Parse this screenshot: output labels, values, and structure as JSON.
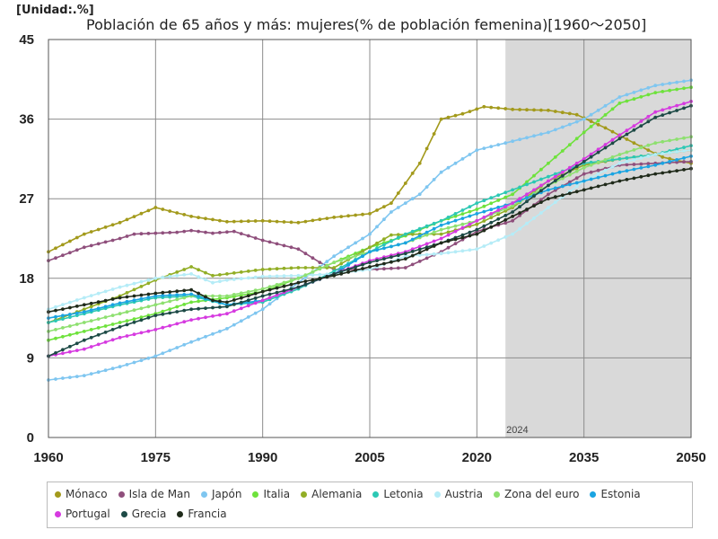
{
  "unit_label": "[Unidad:.%]",
  "chart_data": {
    "type": "line",
    "title": "Población de 65 años y más: mujeres(% de población femenina)[1960～2050]",
    "xlabel": "",
    "ylabel": "",
    "xlim": [
      1960,
      2050
    ],
    "ylim": [
      0,
      45
    ],
    "x_ticks": [
      "1960",
      "1975",
      "1990",
      "2005",
      "2020",
      "2035",
      "2050"
    ],
    "y_ticks": [
      "0",
      "9",
      "18",
      "27",
      "36",
      "45"
    ],
    "projection_start": 2024,
    "projection_label": "2024",
    "grid": true,
    "legend_position": "bottom",
    "series": [
      {
        "name": "Mónaco",
        "color": "#a39a1c",
        "points": [
          [
            1960,
            21
          ],
          [
            1965,
            23
          ],
          [
            1970,
            24.3
          ],
          [
            1975,
            26
          ],
          [
            1980,
            25
          ],
          [
            1985,
            24.4
          ],
          [
            1990,
            24.5
          ],
          [
            1995,
            24.3
          ],
          [
            2000,
            24.9
          ],
          [
            2005,
            25.3
          ],
          [
            2008,
            26.5
          ],
          [
            2012,
            31
          ],
          [
            2015,
            36
          ],
          [
            2018,
            36.6
          ],
          [
            2021,
            37.4
          ],
          [
            2025,
            37.1
          ],
          [
            2030,
            37
          ],
          [
            2034,
            36.5
          ],
          [
            2038,
            35
          ],
          [
            2042,
            33.3
          ],
          [
            2046,
            31.7
          ],
          [
            2050,
            31
          ]
        ]
      },
      {
        "name": "Isla de Man",
        "color": "#8f4f7c",
        "points": [
          [
            1960,
            20
          ],
          [
            1965,
            21.5
          ],
          [
            1970,
            22.5
          ],
          [
            1972,
            23
          ],
          [
            1978,
            23.2
          ],
          [
            1980,
            23.4
          ],
          [
            1983,
            23.1
          ],
          [
            1986,
            23.3
          ],
          [
            1990,
            22.3
          ],
          [
            1995,
            21.3
          ],
          [
            1998,
            19.8
          ],
          [
            2000,
            19
          ],
          [
            2005,
            19
          ],
          [
            2010,
            19.2
          ],
          [
            2015,
            21
          ],
          [
            2020,
            23.3
          ],
          [
            2025,
            24.5
          ],
          [
            2030,
            27.5
          ],
          [
            2035,
            29.8
          ],
          [
            2040,
            30.8
          ],
          [
            2045,
            31
          ],
          [
            2050,
            31.2
          ]
        ]
      },
      {
        "name": "Japón",
        "color": "#7fc6f0",
        "points": [
          [
            1960,
            6.5
          ],
          [
            1965,
            7
          ],
          [
            1970,
            8
          ],
          [
            1975,
            9.2
          ],
          [
            1980,
            10.8
          ],
          [
            1985,
            12.3
          ],
          [
            1990,
            14.5
          ],
          [
            1995,
            17.5
          ],
          [
            2000,
            20.5
          ],
          [
            2005,
            23
          ],
          [
            2008,
            25.5
          ],
          [
            2012,
            27.5
          ],
          [
            2015,
            30
          ],
          [
            2020,
            32.5
          ],
          [
            2025,
            33.5
          ],
          [
            2030,
            34.5
          ],
          [
            2035,
            36
          ],
          [
            2040,
            38.5
          ],
          [
            2045,
            39.8
          ],
          [
            2050,
            40.4
          ]
        ]
      },
      {
        "name": "Italia",
        "color": "#6ee23c",
        "points": [
          [
            1960,
            11
          ],
          [
            1965,
            12
          ],
          [
            1970,
            13
          ],
          [
            1975,
            14
          ],
          [
            1980,
            15.3
          ],
          [
            1985,
            15.8
          ],
          [
            1990,
            16.5
          ],
          [
            1995,
            18
          ],
          [
            2000,
            19.8
          ],
          [
            2005,
            21.5
          ],
          [
            2010,
            22.8
          ],
          [
            2015,
            24.5
          ],
          [
            2020,
            25.8
          ],
          [
            2025,
            27.5
          ],
          [
            2030,
            31
          ],
          [
            2035,
            34.5
          ],
          [
            2040,
            37.8
          ],
          [
            2045,
            39
          ],
          [
            2050,
            39.6
          ]
        ]
      },
      {
        "name": "Alemania",
        "color": "#92ae26",
        "points": [
          [
            1960,
            13
          ],
          [
            1965,
            14.5
          ],
          [
            1970,
            16
          ],
          [
            1975,
            17.8
          ],
          [
            1980,
            19.3
          ],
          [
            1983,
            18.3
          ],
          [
            1985,
            18.5
          ],
          [
            1990,
            19
          ],
          [
            1995,
            19.2
          ],
          [
            2000,
            19.2
          ],
          [
            2005,
            21.5
          ],
          [
            2008,
            22.9
          ],
          [
            2012,
            23
          ],
          [
            2015,
            23
          ],
          [
            2020,
            24.1
          ],
          [
            2025,
            26
          ],
          [
            2030,
            29
          ],
          [
            2035,
            30.8
          ],
          [
            2040,
            31.5
          ],
          [
            2045,
            32
          ],
          [
            2050,
            32.5
          ]
        ]
      },
      {
        "name": "Letonia",
        "color": "#2cc8b4",
        "points": [
          [
            1960,
            13
          ],
          [
            1965,
            14
          ],
          [
            1970,
            15
          ],
          [
            1975,
            15.8
          ],
          [
            1980,
            16
          ],
          [
            1985,
            15
          ],
          [
            1990,
            15.3
          ],
          [
            1995,
            16.8
          ],
          [
            2000,
            18.8
          ],
          [
            2005,
            21
          ],
          [
            2010,
            23
          ],
          [
            2015,
            24.5
          ],
          [
            2020,
            26.5
          ],
          [
            2025,
            28
          ],
          [
            2030,
            29.5
          ],
          [
            2035,
            31
          ],
          [
            2040,
            31.5
          ],
          [
            2045,
            32
          ],
          [
            2050,
            33
          ]
        ]
      },
      {
        "name": "Austria",
        "color": "#b5ecf7",
        "points": [
          [
            1960,
            14.5
          ],
          [
            1965,
            15.8
          ],
          [
            1970,
            17
          ],
          [
            1975,
            18
          ],
          [
            1980,
            18.5
          ],
          [
            1983,
            17.5
          ],
          [
            1985,
            17.8
          ],
          [
            1990,
            18.2
          ],
          [
            1995,
            18.3
          ],
          [
            2000,
            18.5
          ],
          [
            2005,
            19
          ],
          [
            2010,
            20.5
          ],
          [
            2015,
            20.8
          ],
          [
            2020,
            21.3
          ],
          [
            2025,
            23
          ],
          [
            2030,
            26
          ],
          [
            2035,
            29
          ],
          [
            2040,
            31
          ],
          [
            2045,
            32
          ],
          [
            2050,
            32.5
          ]
        ]
      },
      {
        "name": "Zona del euro",
        "color": "#8ee070",
        "points": [
          [
            1960,
            12
          ],
          [
            1965,
            13
          ],
          [
            1970,
            14
          ],
          [
            1975,
            15
          ],
          [
            1980,
            16
          ],
          [
            1985,
            16
          ],
          [
            1990,
            16.8
          ],
          [
            1995,
            18
          ],
          [
            2000,
            19.8
          ],
          [
            2005,
            21
          ],
          [
            2010,
            22
          ],
          [
            2015,
            23.5
          ],
          [
            2020,
            24.5
          ],
          [
            2025,
            26.2
          ],
          [
            2030,
            28.5
          ],
          [
            2035,
            30.5
          ],
          [
            2040,
            32
          ],
          [
            2045,
            33.3
          ],
          [
            2050,
            34
          ]
        ]
      },
      {
        "name": "Estonia",
        "color": "#1aa4e2",
        "points": [
          [
            1960,
            13.5
          ],
          [
            1965,
            14.2
          ],
          [
            1970,
            15.2
          ],
          [
            1975,
            16
          ],
          [
            1980,
            16.2
          ],
          [
            1985,
            15
          ],
          [
            1990,
            15.5
          ],
          [
            1995,
            17
          ],
          [
            2000,
            18.5
          ],
          [
            2005,
            21
          ],
          [
            2010,
            22
          ],
          [
            2015,
            24
          ],
          [
            2020,
            25.3
          ],
          [
            2025,
            26.5
          ],
          [
            2030,
            28
          ],
          [
            2035,
            29
          ],
          [
            2040,
            30
          ],
          [
            2045,
            30.8
          ],
          [
            2050,
            31.8
          ]
        ]
      },
      {
        "name": "Portugal",
        "color": "#d63ae0",
        "points": [
          [
            1960,
            9.2
          ],
          [
            1965,
            10
          ],
          [
            1970,
            11.3
          ],
          [
            1975,
            12.2
          ],
          [
            1980,
            13.3
          ],
          [
            1985,
            14
          ],
          [
            1990,
            15.5
          ],
          [
            1995,
            17
          ],
          [
            2000,
            18.5
          ],
          [
            2005,
            20
          ],
          [
            2010,
            21
          ],
          [
            2015,
            22.5
          ],
          [
            2020,
            24.5
          ],
          [
            2025,
            26.5
          ],
          [
            2030,
            29
          ],
          [
            2035,
            31.5
          ],
          [
            2040,
            34.2
          ],
          [
            2045,
            36.8
          ],
          [
            2050,
            38
          ]
        ]
      },
      {
        "name": "Grecia",
        "color": "#1d4a46",
        "points": [
          [
            1960,
            9.2
          ],
          [
            1965,
            11
          ],
          [
            1970,
            12.5
          ],
          [
            1975,
            13.8
          ],
          [
            1980,
            14.5
          ],
          [
            1985,
            14.8
          ],
          [
            1990,
            16
          ],
          [
            1995,
            17
          ],
          [
            2000,
            18.5
          ],
          [
            2005,
            19.8
          ],
          [
            2010,
            20.8
          ],
          [
            2015,
            22
          ],
          [
            2020,
            23.5
          ],
          [
            2025,
            25.5
          ],
          [
            2030,
            28.5
          ],
          [
            2035,
            31.2
          ],
          [
            2040,
            33.8
          ],
          [
            2045,
            36.2
          ],
          [
            2050,
            37.5
          ]
        ]
      },
      {
        "name": "Francia",
        "color": "#1f2a1a",
        "points": [
          [
            1960,
            14.2
          ],
          [
            1965,
            15
          ],
          [
            1970,
            15.8
          ],
          [
            1975,
            16.3
          ],
          [
            1980,
            16.7
          ],
          [
            1983,
            15.5
          ],
          [
            1985,
            15.3
          ],
          [
            1990,
            16.5
          ],
          [
            1995,
            17.5
          ],
          [
            2000,
            18.3
          ],
          [
            2005,
            19.3
          ],
          [
            2010,
            20.2
          ],
          [
            2015,
            22
          ],
          [
            2020,
            23
          ],
          [
            2025,
            25
          ],
          [
            2030,
            27
          ],
          [
            2035,
            28
          ],
          [
            2040,
            29
          ],
          [
            2045,
            29.8
          ],
          [
            2050,
            30.4
          ]
        ]
      }
    ]
  }
}
